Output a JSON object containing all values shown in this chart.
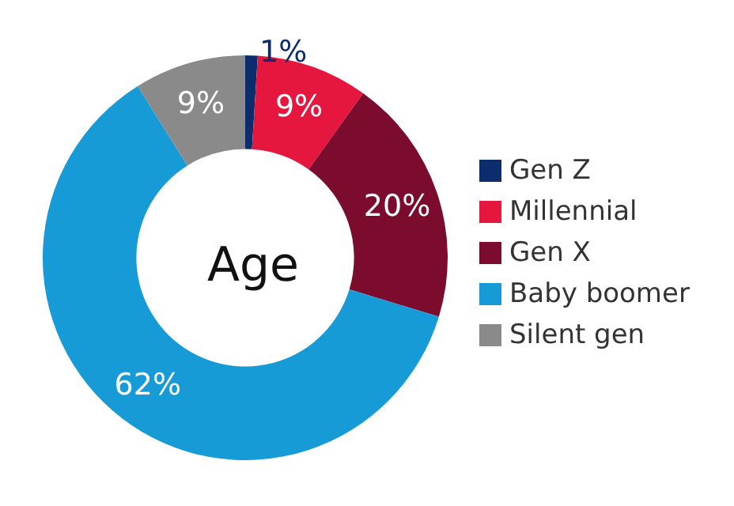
{
  "chart_data": {
    "type": "donut",
    "title": "Age",
    "categories": [
      "Gen Z",
      "Millennial",
      "Gen X",
      "Baby boomer",
      "Silent gen"
    ],
    "values": [
      1,
      9,
      20,
      62,
      9
    ],
    "colors": [
      "#0c2c6c",
      "#e5173f",
      "#7b0c2e",
      "#169bd7",
      "#8a8a8a"
    ],
    "value_labels": [
      "1%",
      "9%",
      "20%",
      "62%",
      "9%"
    ],
    "legend": "right"
  }
}
